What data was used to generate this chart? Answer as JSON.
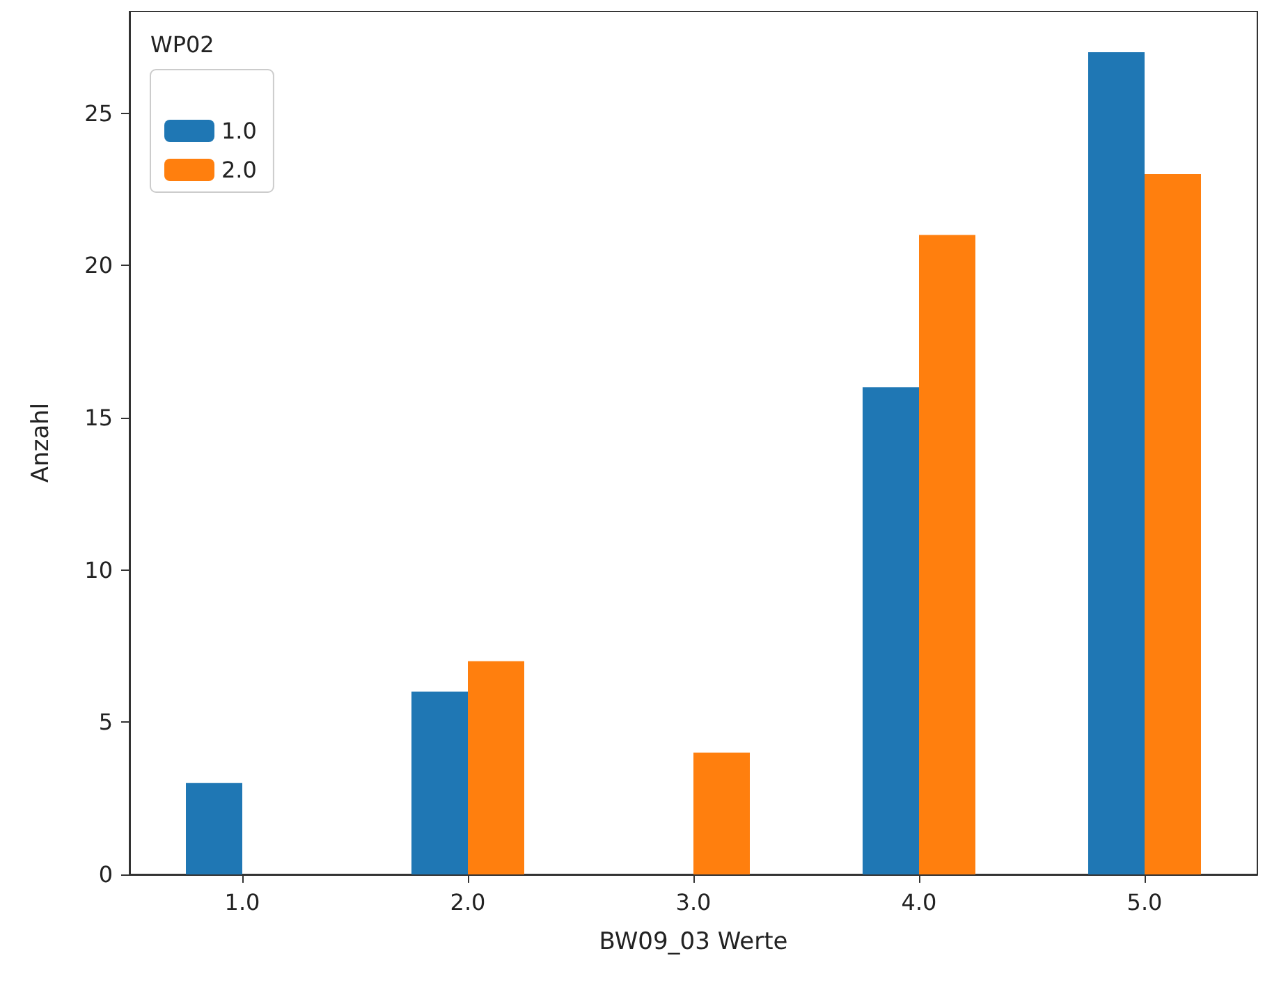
{
  "chart_data": {
    "type": "bar",
    "xlabel": "BW09_03 Werte",
    "ylabel": "Anzahl",
    "legend_title": "WP02",
    "categories": [
      "1.0",
      "2.0",
      "3.0",
      "4.0",
      "5.0"
    ],
    "series": [
      {
        "name": "1.0",
        "color": "#1f77b4",
        "values": [
          3,
          6,
          0,
          16,
          27
        ]
      },
      {
        "name": "2.0",
        "color": "#ff7f0e",
        "values": [
          0,
          7,
          4,
          21,
          23
        ]
      }
    ],
    "ylim": [
      0,
      28.35
    ],
    "yticks": [
      0,
      5,
      10,
      15,
      20,
      25
    ],
    "grid": false,
    "legend": "top left"
  }
}
